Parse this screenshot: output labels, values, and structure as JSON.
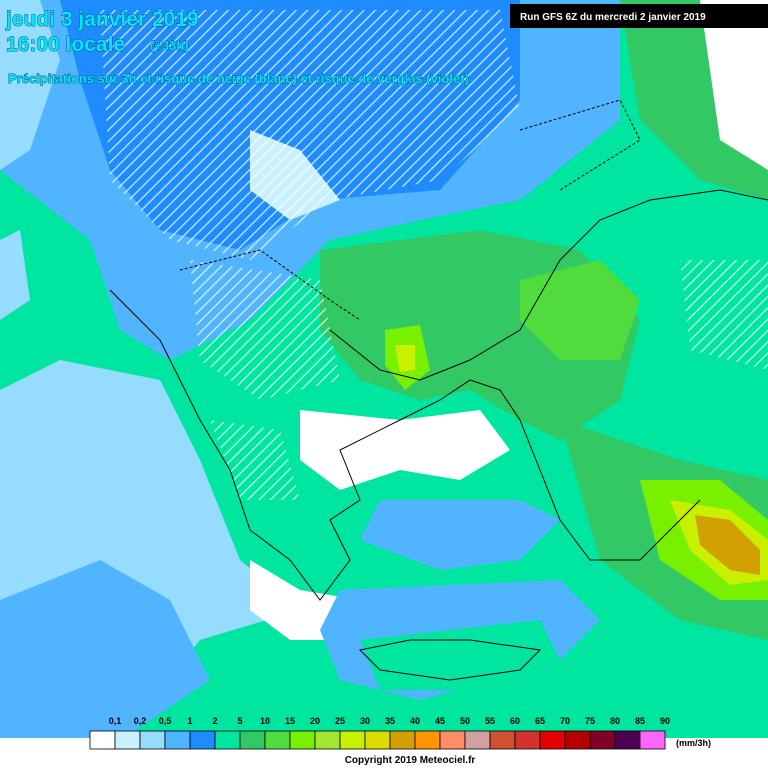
{
  "header": {
    "date": "jeudi 3 janvier 2019",
    "time": "16:00 locale",
    "lead": "(+33h)",
    "subtitle": "Précipitations sur 3h et risque de neige (blanc) et risque de verglas (violet)",
    "run": "Run GFS 6Z du mercredi 2 janvier 2019"
  },
  "legend": {
    "ticks": [
      "0,1",
      "0,2",
      "0,5",
      "1",
      "2",
      "5",
      "10",
      "15",
      "20",
      "25",
      "30",
      "35",
      "40",
      "45",
      "50",
      "55",
      "60",
      "65",
      "70",
      "75",
      "80",
      "85",
      "90"
    ],
    "colors": [
      "#ffffff",
      "#c8f0ff",
      "#96dcff",
      "#50b4ff",
      "#1e8cff",
      "#00e6a0",
      "#32c864",
      "#50dc3c",
      "#78f000",
      "#a0e632",
      "#c8f000",
      "#dcdc00",
      "#d2a000",
      "#ff9600",
      "#ff8c64",
      "#d2a0a0",
      "#d25032",
      "#d23232",
      "#e60000",
      "#b40000",
      "#820028",
      "#500050",
      "#ff64ff"
    ],
    "unit": "(mm/3h)"
  },
  "footer": {
    "copyright": "Copyright 2019 Meteociel.fr"
  }
}
